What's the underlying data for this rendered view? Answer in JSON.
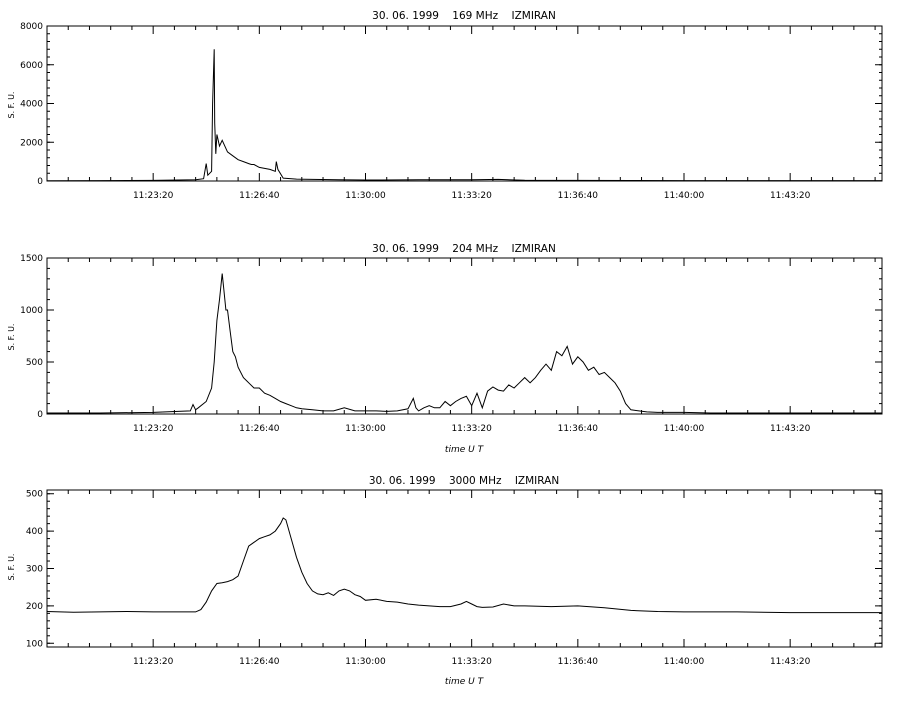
{
  "chart_data": [
    {
      "type": "line",
      "title": "30. 06. 1999    169 MHz    IZMIRAN",
      "ylabel": "S. F. U.",
      "xlabel": "",
      "y_ticks": [
        0,
        2000,
        4000,
        6000,
        8000
      ],
      "ylim": [
        0,
        8000
      ],
      "x_ticks": [
        "11:23:20",
        "11:26:40",
        "11:30:00",
        "11:33:20",
        "11:36:40",
        "11:40:00",
        "11:43:20"
      ],
      "x_tick_seconds": [
        200,
        400,
        600,
        800,
        1000,
        1200,
        1400
      ],
      "x_range_seconds": [
        0,
        1573
      ],
      "x_unit": "seconds after 11:20:00 UT",
      "series": [
        {
          "x": [
            0,
            100,
            200,
            280,
            295,
            300,
            303,
            310,
            312,
            315,
            316,
            318,
            320,
            325,
            330,
            340,
            350,
            360,
            370,
            375,
            380,
            385,
            390,
            400,
            420,
            430,
            432,
            435,
            445,
            470,
            500,
            550,
            600,
            700,
            800,
            850,
            900,
            1000,
            1100,
            1200,
            1300,
            1400,
            1500,
            1573
          ],
          "y": [
            10,
            20,
            30,
            60,
            120,
            900,
            300,
            500,
            4000,
            6800,
            3000,
            1400,
            2400,
            1800,
            2100,
            1500,
            1300,
            1100,
            1000,
            950,
            900,
            850,
            850,
            700,
            600,
            500,
            1000,
            600,
            150,
            100,
            80,
            60,
            50,
            60,
            60,
            80,
            40,
            30,
            25,
            20,
            20,
            20,
            20,
            20
          ]
        }
      ]
    },
    {
      "type": "line",
      "title": "30. 06. 1999    204 MHz    IZMIRAN",
      "ylabel": "S. F. U.",
      "xlabel": "time  U T",
      "y_ticks": [
        0,
        500,
        1000,
        1500
      ],
      "ylim": [
        0,
        1500
      ],
      "x_ticks": [
        "11:23:20",
        "11:26:40",
        "11:30:00",
        "11:33:20",
        "11:36:40",
        "11:40:00",
        "11:43:20"
      ],
      "x_tick_seconds": [
        200,
        400,
        600,
        800,
        1000,
        1200,
        1400
      ],
      "x_range_seconds": [
        0,
        1573
      ],
      "x_unit": "seconds after 11:20:00 UT",
      "series": [
        {
          "x": [
            0,
            100,
            200,
            270,
            275,
            280,
            285,
            300,
            310,
            315,
            320,
            325,
            330,
            333,
            337,
            340,
            345,
            350,
            355,
            360,
            370,
            380,
            390,
            400,
            410,
            420,
            430,
            440,
            450,
            460,
            470,
            480,
            500,
            520,
            540,
            560,
            580,
            600,
            620,
            640,
            660,
            680,
            690,
            695,
            700,
            710,
            720,
            730,
            740,
            750,
            760,
            770,
            780,
            790,
            800,
            810,
            820,
            830,
            840,
            850,
            860,
            870,
            880,
            890,
            900,
            910,
            920,
            930,
            940,
            950,
            960,
            970,
            980,
            990,
            1000,
            1010,
            1020,
            1030,
            1040,
            1050,
            1060,
            1070,
            1080,
            1090,
            1100,
            1130,
            1150,
            1200,
            1250,
            1300,
            1350,
            1400,
            1450,
            1500,
            1573
          ],
          "y": [
            10,
            10,
            15,
            30,
            90,
            40,
            60,
            120,
            250,
            500,
            900,
            1100,
            1350,
            1200,
            1000,
            1000,
            800,
            600,
            550,
            450,
            350,
            300,
            250,
            250,
            200,
            180,
            150,
            120,
            100,
            80,
            60,
            50,
            40,
            30,
            30,
            60,
            30,
            30,
            30,
            25,
            30,
            50,
            150,
            60,
            30,
            60,
            80,
            60,
            60,
            120,
            80,
            120,
            150,
            170,
            80,
            200,
            60,
            220,
            260,
            230,
            220,
            280,
            250,
            300,
            350,
            300,
            350,
            420,
            480,
            420,
            600,
            560,
            650,
            480,
            550,
            500,
            420,
            450,
            380,
            400,
            350,
            300,
            220,
            100,
            40,
            20,
            15,
            15,
            10,
            10,
            10,
            10,
            10,
            10,
            10
          ]
        }
      ]
    },
    {
      "type": "line",
      "title": "30. 06. 1999    3000 MHz    IZMIRAN",
      "ylabel": "S. F. U.",
      "xlabel": "time  U T",
      "y_ticks": [
        100,
        200,
        300,
        400,
        500
      ],
      "ylim": [
        90,
        510
      ],
      "x_ticks": [
        "11:23:20",
        "11:26:40",
        "11:30:00",
        "11:33:20",
        "11:36:40",
        "11:40:00",
        "11:43:20"
      ],
      "x_tick_seconds": [
        200,
        400,
        600,
        800,
        1000,
        1200,
        1400
      ],
      "x_range_seconds": [
        0,
        1573
      ],
      "x_unit": "seconds after 11:20:00 UT",
      "series": [
        {
          "x": [
            0,
            50,
            100,
            150,
            200,
            250,
            280,
            290,
            300,
            310,
            320,
            330,
            340,
            350,
            360,
            370,
            380,
            390,
            400,
            410,
            420,
            430,
            440,
            445,
            450,
            460,
            470,
            480,
            490,
            500,
            510,
            520,
            530,
            540,
            550,
            560,
            570,
            580,
            590,
            600,
            620,
            640,
            660,
            680,
            700,
            720,
            740,
            760,
            780,
            790,
            800,
            810,
            820,
            840,
            860,
            880,
            900,
            950,
            1000,
            1050,
            1100,
            1150,
            1200,
            1300,
            1400,
            1500,
            1573
          ],
          "y": [
            185,
            183,
            184,
            185,
            184,
            184,
            184,
            190,
            210,
            240,
            260,
            262,
            265,
            270,
            280,
            320,
            360,
            370,
            380,
            385,
            390,
            400,
            420,
            435,
            430,
            380,
            330,
            290,
            260,
            240,
            232,
            230,
            235,
            228,
            240,
            245,
            240,
            230,
            225,
            215,
            218,
            212,
            210,
            205,
            202,
            200,
            198,
            198,
            205,
            212,
            205,
            198,
            196,
            197,
            205,
            200,
            200,
            198,
            200,
            195,
            188,
            185,
            184,
            184,
            182,
            182,
            182
          ]
        }
      ]
    }
  ]
}
